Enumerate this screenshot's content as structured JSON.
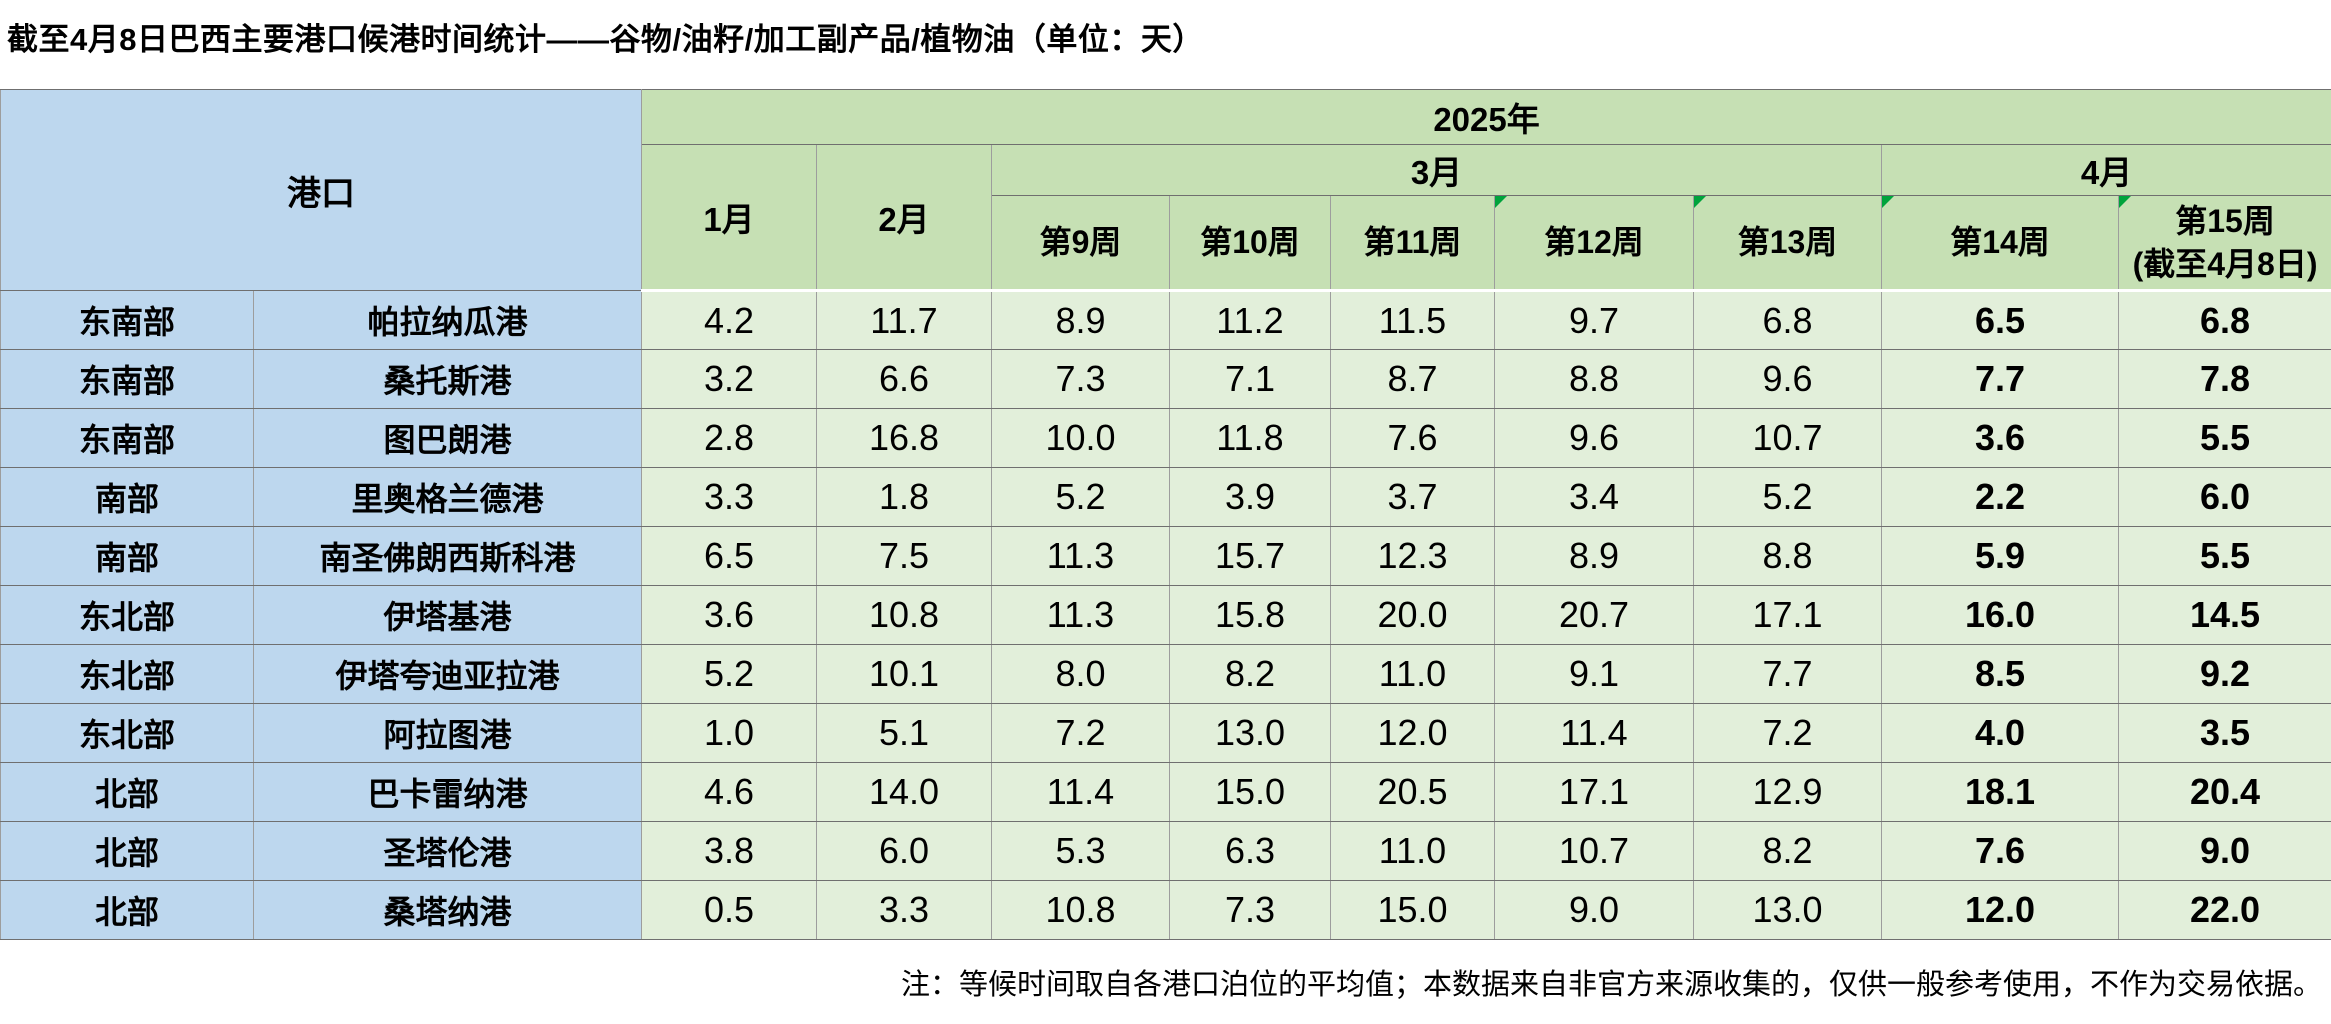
{
  "title": "截至4月8日巴西主要港口候港时间统计——谷物/油籽/加工副产品/植物油（单位：天）",
  "header": {
    "port": "港口",
    "year": "2025年",
    "jan": "1月",
    "feb": "2月",
    "mar": "3月",
    "apr": "4月",
    "weeks": [
      {
        "label": "第9周",
        "flag": false
      },
      {
        "label": "第10周",
        "flag": false
      },
      {
        "label": "第11周",
        "flag": false
      },
      {
        "label": "第12周",
        "flag": true
      },
      {
        "label": "第13周",
        "flag": true
      },
      {
        "label": "第14周",
        "flag": true
      },
      {
        "label": "第15周\n(截至4月8日)",
        "flag": true
      }
    ]
  },
  "rows": [
    {
      "region": "东南部",
      "port": "帕拉纳瓜港",
      "values": [
        "4.2",
        "11.7",
        "8.9",
        "11.2",
        "11.5",
        "9.7",
        "6.8",
        "6.5",
        "6.8"
      ]
    },
    {
      "region": "东南部",
      "port": "桑托斯港",
      "values": [
        "3.2",
        "6.6",
        "7.3",
        "7.1",
        "8.7",
        "8.8",
        "9.6",
        "7.7",
        "7.8"
      ]
    },
    {
      "region": "东南部",
      "port": "图巴朗港",
      "values": [
        "2.8",
        "16.8",
        "10.0",
        "11.8",
        "7.6",
        "9.6",
        "10.7",
        "3.6",
        "5.5"
      ]
    },
    {
      "region": "南部",
      "port": "里奥格兰德港",
      "values": [
        "3.3",
        "1.8",
        "5.2",
        "3.9",
        "3.7",
        "3.4",
        "5.2",
        "2.2",
        "6.0"
      ]
    },
    {
      "region": "南部",
      "port": "南圣佛朗西斯科港",
      "values": [
        "6.5",
        "7.5",
        "11.3",
        "15.7",
        "12.3",
        "8.9",
        "8.8",
        "5.9",
        "5.5"
      ]
    },
    {
      "region": "东北部",
      "port": "伊塔基港",
      "values": [
        "3.6",
        "10.8",
        "11.3",
        "15.8",
        "20.0",
        "20.7",
        "17.1",
        "16.0",
        "14.5"
      ]
    },
    {
      "region": "东北部",
      "port": "伊塔夸迪亚拉港",
      "values": [
        "5.2",
        "10.1",
        "8.0",
        "8.2",
        "11.0",
        "9.1",
        "7.7",
        "8.5",
        "9.2"
      ]
    },
    {
      "region": "东北部",
      "port": "阿拉图港",
      "values": [
        "1.0",
        "5.1",
        "7.2",
        "13.0",
        "12.0",
        "11.4",
        "7.2",
        "4.0",
        "3.5"
      ]
    },
    {
      "region": "北部",
      "port": "巴卡雷纳港",
      "values": [
        "4.6",
        "14.0",
        "11.4",
        "15.0",
        "20.5",
        "17.1",
        "12.9",
        "18.1",
        "20.4"
      ]
    },
    {
      "region": "北部",
      "port": "圣塔伦港",
      "values": [
        "3.8",
        "6.0",
        "5.3",
        "6.3",
        "11.0",
        "10.7",
        "8.2",
        "7.6",
        "9.0"
      ]
    },
    {
      "region": "北部",
      "port": "桑塔纳港",
      "values": [
        "0.5",
        "3.3",
        "10.8",
        "7.3",
        "15.0",
        "9.0",
        "13.0",
        "12.0",
        "22.0"
      ]
    }
  ],
  "note": "注：等候时间取自各港口泊位的平均值；本数据来自非官方来源收集的，仅供一般参考使用，不作为交易依据。",
  "colors": {
    "blue_header": "#BDD7EE",
    "green_header": "#C6E0B4",
    "green_cell": "#E2EFDA",
    "flag_green": "#00A33C"
  }
}
